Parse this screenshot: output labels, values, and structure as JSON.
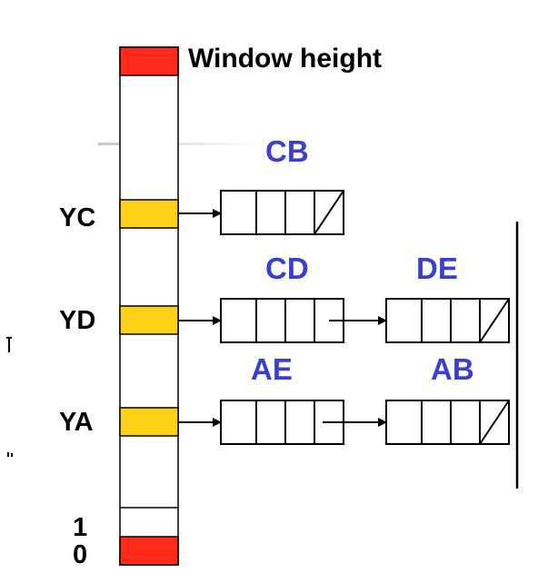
{
  "title": "Window height",
  "rows": [
    {
      "label": "YC",
      "edges": [
        "CB"
      ]
    },
    {
      "label": "YD",
      "edges": [
        "CD",
        "DE"
      ]
    },
    {
      "label": "YA",
      "edges": [
        "AE",
        "AB"
      ]
    }
  ],
  "bottom_labels": {
    "one": "1",
    "zero": "0"
  },
  "colors": {
    "red": "#ff2a1a",
    "yellow": "#ffd21a",
    "blue_text": "#3b3fcf"
  }
}
